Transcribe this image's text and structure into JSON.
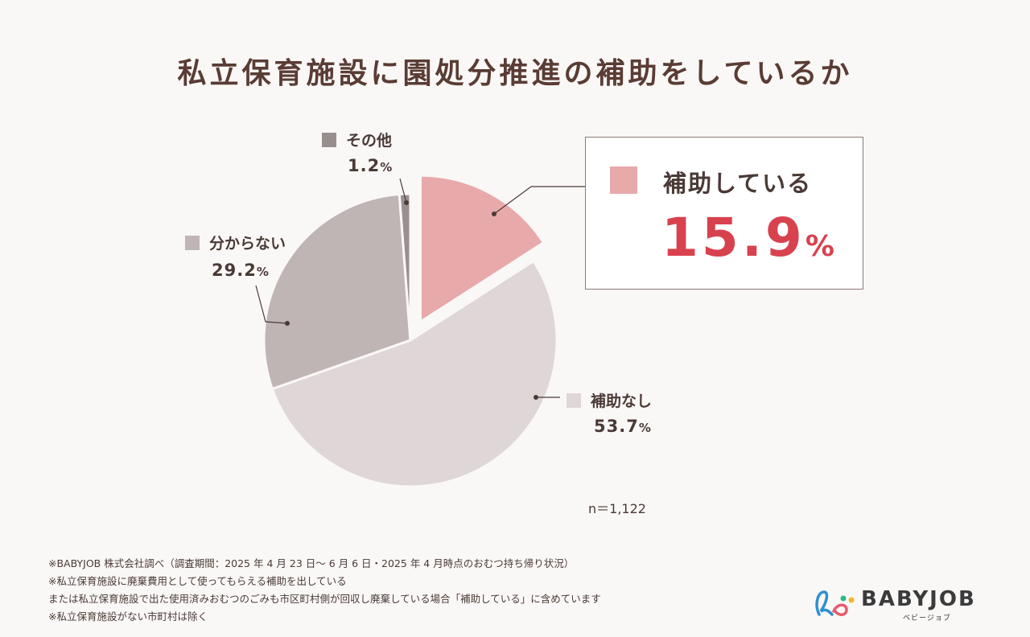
{
  "chart_data": {
    "type": "pie",
    "title": "私立保育施設に園処分推進の補助をしているか",
    "slices": [
      {
        "name": "補助している",
        "value": 15.9,
        "color": "#e8a9aa"
      },
      {
        "name": "補助なし",
        "value": 53.7,
        "color": "#dfd7d7"
      },
      {
        "name": "分からない",
        "value": 29.2,
        "color": "#c0b5b5"
      },
      {
        "name": "その他",
        "value": 1.2,
        "color": "#9a8f8f"
      }
    ],
    "highlight": "補助している",
    "unit": "%"
  },
  "labels": {
    "other_name": "その他",
    "other_pct": "1.2",
    "unknown_name": "分からない",
    "unknown_pct": "29.2",
    "none_name": "補助なし",
    "none_pct": "53.7",
    "yes_name": "補助している",
    "yes_pct": "15.9",
    "pct_sign": "%"
  },
  "sample": "n＝1,122",
  "notes": [
    "※BABYJOB 株式会社調べ（調査期間：2025 年 4 月 23 日〜 6 月 6 日・2025 年 4 月時点のおむつ持ち帰り状況）",
    "※私立保育施設に廃棄費用として使ってもらえる補助を出している",
    "または私立保育施設で出た使用済みおむつのごみも市区町村側が回収し廃棄している場合「補助している」に含めています",
    "※私立保育施設がない市町村は除く"
  ],
  "logo": {
    "word": "BABYJOB",
    "sub": "ベビージョブ"
  }
}
